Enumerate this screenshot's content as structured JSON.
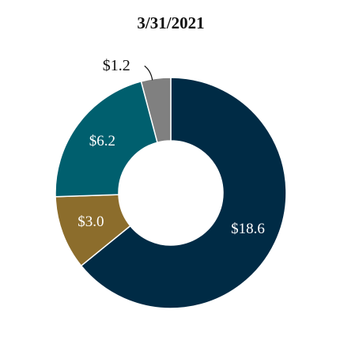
{
  "chart_data": {
    "type": "donut",
    "title": "3/31/2021",
    "categories": [
      null,
      null,
      null,
      null
    ],
    "values": [
      18.6,
      3.0,
      6.2,
      1.2
    ],
    "value_labels": [
      "$18.6",
      "$3.0",
      "$6.2",
      "$1.2"
    ],
    "colors": [
      "#002b45",
      "#8c6d2c",
      "#005f6e",
      "#808080"
    ]
  }
}
